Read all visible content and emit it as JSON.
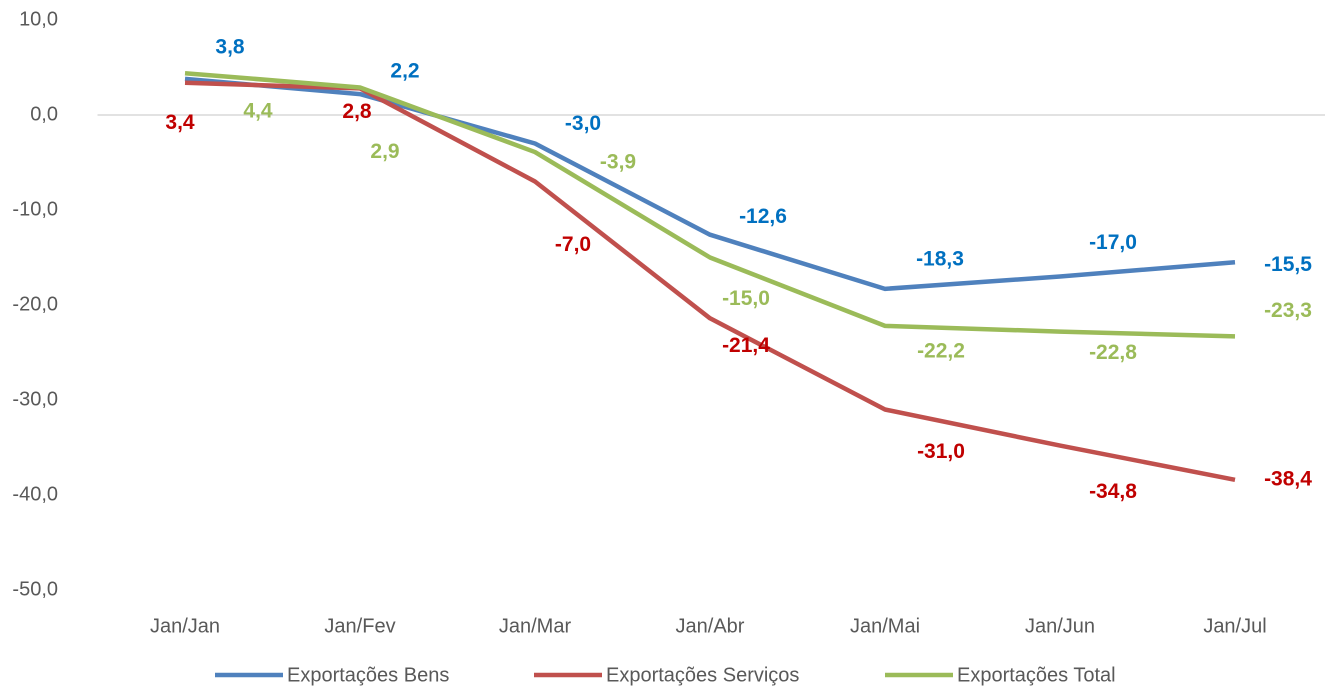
{
  "chart_data": {
    "type": "line",
    "categories": [
      "Jan/Jan",
      "Jan/Fev",
      "Jan/Mar",
      "Jan/Abr",
      "Jan/Mai",
      "Jan/Jun",
      "Jan/Jul"
    ],
    "series": [
      {
        "name": "Exportações Bens",
        "color": "#4f81bd",
        "label_color": "#0070c0",
        "values": [
          3.8,
          2.2,
          -3.0,
          -12.6,
          -18.3,
          -17.0,
          -15.5
        ],
        "value_labels": [
          "3,8",
          "2,2",
          "-3,0",
          "-12,6",
          "-18,3",
          "-17,0",
          "-15,5"
        ]
      },
      {
        "name": "Exportações Serviços",
        "color": "#c0504d",
        "label_color": "#c00000",
        "values": [
          3.4,
          2.8,
          -7.0,
          -21.4,
          -31.0,
          -34.8,
          -38.4
        ],
        "value_labels": [
          "3,4",
          "2,8",
          "-7,0",
          "-21,4",
          "-31,0",
          "-34,8",
          "-38,4"
        ]
      },
      {
        "name": "Exportações Total",
        "color": "#9bbb59",
        "label_color": "#9bbb59",
        "values": [
          4.4,
          2.9,
          -3.9,
          -15.0,
          -22.2,
          -22.8,
          -23.3
        ],
        "value_labels": [
          "4,4",
          "2,9",
          "-3,9",
          "-15,0",
          "-22,2",
          "-22,8",
          "-23,3"
        ]
      }
    ],
    "ylim": [
      -50,
      10
    ],
    "yticks": [
      {
        "value": 10,
        "label": "10,0"
      },
      {
        "value": 0,
        "label": "0,0"
      },
      {
        "value": -10,
        "label": "-10,0"
      },
      {
        "value": -20,
        "label": "-20,0"
      },
      {
        "value": -30,
        "label": "-30,0"
      },
      {
        "value": -40,
        "label": "-40,0"
      },
      {
        "value": -50,
        "label": "-50,0"
      }
    ],
    "legend": "bottom"
  }
}
